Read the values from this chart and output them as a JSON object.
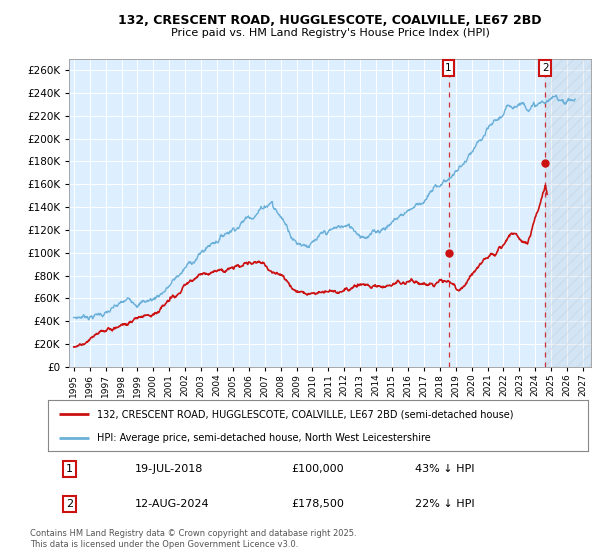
{
  "title1": "132, CRESCENT ROAD, HUGGLESCOTE, COALVILLE, LE67 2BD",
  "title2": "Price paid vs. HM Land Registry's House Price Index (HPI)",
  "ylim": [
    0,
    270000
  ],
  "yticks": [
    0,
    20000,
    40000,
    60000,
    80000,
    100000,
    120000,
    140000,
    160000,
    180000,
    200000,
    220000,
    240000,
    260000
  ],
  "hpi_color": "#6ab0d8",
  "price_color": "#cc1111",
  "bg_color": "#ddeeff",
  "sale1_date": 2018.55,
  "sale1_price": 100000,
  "sale2_date": 2024.62,
  "sale2_price": 178500,
  "legend_line1": "132, CRESCENT ROAD, HUGGLESCOTE, COALVILLE, LE67 2BD (semi-detached house)",
  "legend_line2": "HPI: Average price, semi-detached house, North West Leicestershire",
  "annotation1_date": "19-JUL-2018",
  "annotation1_price": "£100,000",
  "annotation1_pct": "43% ↓ HPI",
  "annotation2_date": "12-AUG-2024",
  "annotation2_price": "£178,500",
  "annotation2_pct": "22% ↓ HPI",
  "footer": "Contains HM Land Registry data © Crown copyright and database right 2025.\nThis data is licensed under the Open Government Licence v3.0."
}
